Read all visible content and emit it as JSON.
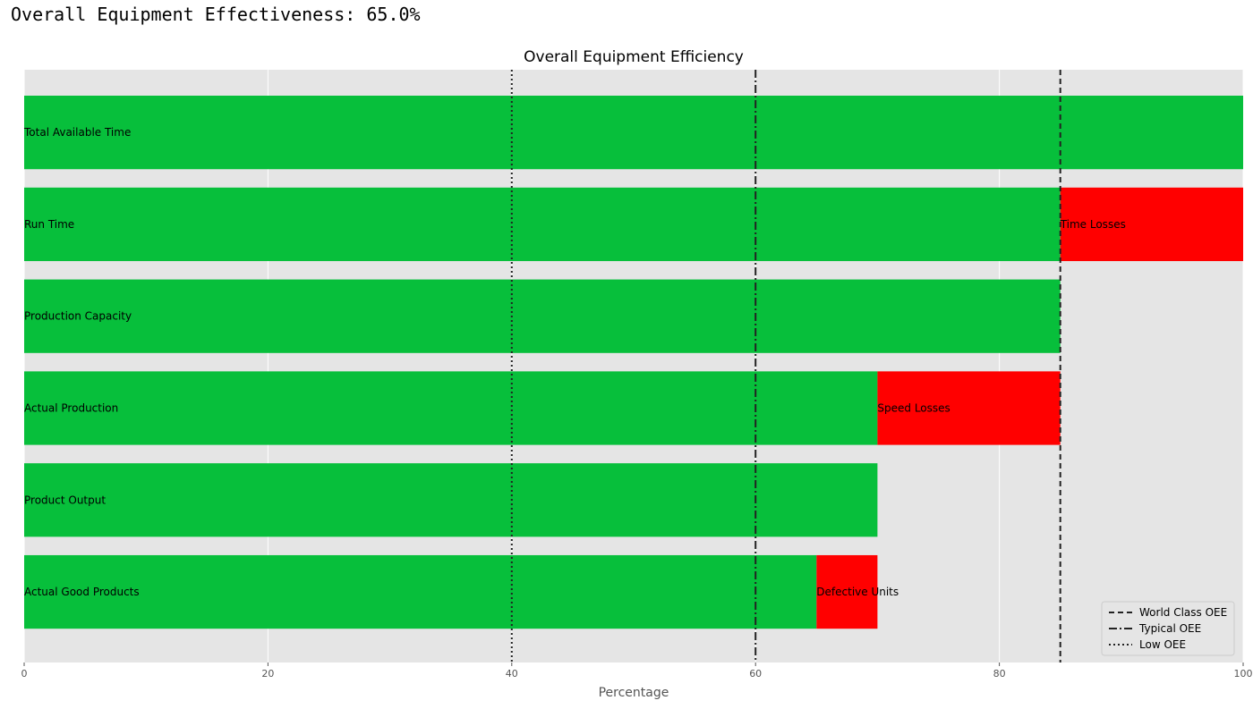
{
  "header": {
    "metric_label": "Overall Equipment Effectiveness:",
    "metric_value": "65.0%"
  },
  "chart_data": {
    "type": "bar",
    "orientation": "horizontal",
    "stacked": true,
    "title": "Overall Equipment Efficiency",
    "xlabel": "Percentage",
    "ylabel": "",
    "xlim": [
      0,
      100
    ],
    "xticks": [
      0,
      20,
      40,
      60,
      80,
      100
    ],
    "grid": true,
    "colors": {
      "good": "#07bf3b",
      "loss": "#ff0000",
      "background": "#e5e5e5",
      "grid": "#ffffff",
      "reference": "#222222"
    },
    "bars": [
      {
        "label": "Total Available Time",
        "value": 100,
        "loss": null,
        "loss_value": 0
      },
      {
        "label": "Run Time",
        "value": 85,
        "loss": "Time Losses",
        "loss_value": 15
      },
      {
        "label": "Production Capacity",
        "value": 85,
        "loss": null,
        "loss_value": 0
      },
      {
        "label": "Actual Production",
        "value": 70,
        "loss": "Speed Losses",
        "loss_value": 15
      },
      {
        "label": "Product Output",
        "value": 70,
        "loss": null,
        "loss_value": 0
      },
      {
        "label": "Actual Good Products",
        "value": 65,
        "loss": "Defective Units",
        "loss_value": 5
      }
    ],
    "reference_lines": [
      {
        "name": "World Class OEE",
        "value": 85,
        "style": "dashed"
      },
      {
        "name": "Typical OEE",
        "value": 60,
        "style": "dashdot"
      },
      {
        "name": "Low OEE",
        "value": 40,
        "style": "dotted"
      }
    ],
    "legend_position": "bottom-right"
  }
}
